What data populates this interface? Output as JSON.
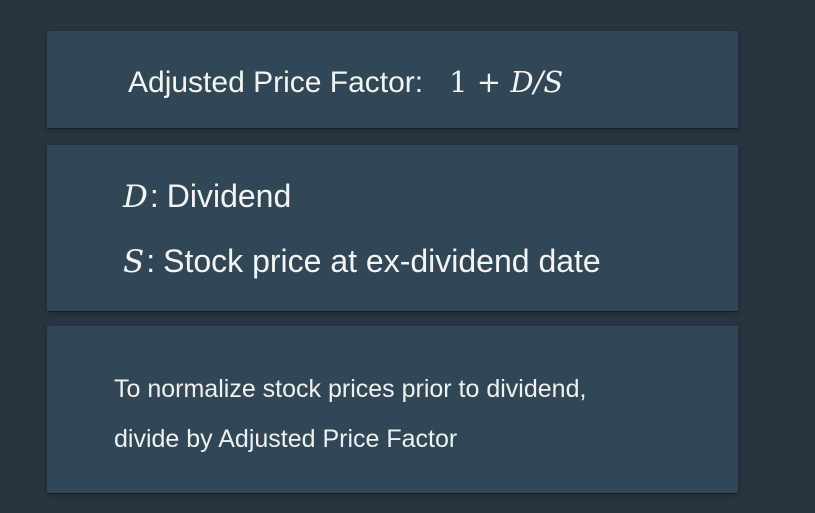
{
  "formula_panel": {
    "label": "Adjusted Price Factor:",
    "expression": {
      "constant": "1",
      "operator": "+",
      "numerator": "D",
      "slash": "/",
      "denominator": "S"
    }
  },
  "definitions_panel": {
    "items": [
      {
        "symbol": "D",
        "separator": ":",
        "meaning": "Dividend"
      },
      {
        "symbol": "S",
        "separator": ":",
        "meaning": "Stock price at ex-dividend date"
      }
    ]
  },
  "note_panel": {
    "lines": [
      "To normalize stock prices prior to dividend,",
      "divide by Adjusted Price Factor"
    ]
  },
  "colors": {
    "background": "#263540",
    "panel": "#324755",
    "text": "#f2f4f5"
  }
}
